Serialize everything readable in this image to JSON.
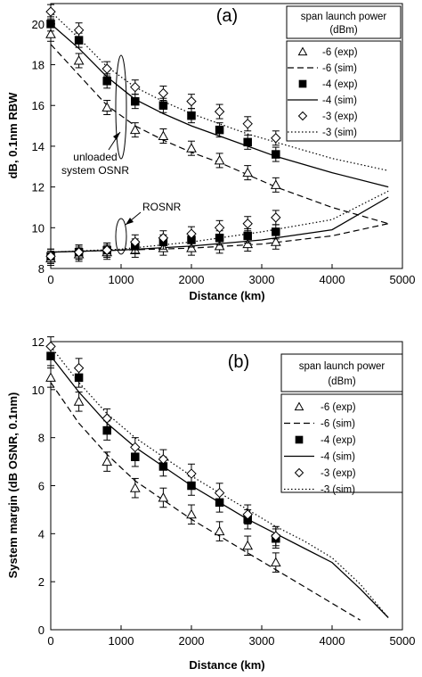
{
  "chart_data": [
    {
      "type": "line",
      "panel_label": "(a)",
      "xlabel": "Distance (km)",
      "ylabel": "dB, 0.1nm RBW",
      "xlim": [
        0,
        5000
      ],
      "ylim": [
        8,
        21
      ],
      "xticks": [
        "0",
        "1000",
        "2000",
        "3000",
        "4000",
        "5000"
      ],
      "yticks": [
        "8",
        "10",
        "12",
        "14",
        "16",
        "18",
        "20"
      ],
      "legend": {
        "title_line1": "span launch power",
        "title_line2": "(dBm)",
        "placement": "top-right"
      },
      "annotations": [
        {
          "text_lines": [
            "unloaded",
            "system OSNR"
          ]
        },
        {
          "text_lines": [
            "ROSNR"
          ]
        }
      ],
      "series": [
        {
          "name": "-6 (exp)",
          "kind": "exp",
          "marker": "triangle",
          "group": "osnr",
          "x": [
            0,
            400,
            800,
            1200,
            1600,
            2000,
            2400,
            2800,
            3200
          ],
          "y": [
            19.5,
            18.2,
            15.9,
            14.8,
            14.5,
            13.9,
            13.3,
            12.7,
            12.1
          ],
          "err": 0.35
        },
        {
          "name": "-6 (sim)",
          "kind": "sim",
          "dash": "dashed",
          "group": "osnr",
          "x": [
            0,
            400,
            800,
            1200,
            1600,
            2000,
            2400,
            2800,
            3200,
            4000,
            4800
          ],
          "y": [
            19.0,
            17.5,
            16.0,
            15.0,
            14.3,
            13.7,
            13.2,
            12.6,
            12.0,
            11.0,
            10.2
          ]
        },
        {
          "name": "-4 (exp)",
          "kind": "exp",
          "marker": "square",
          "group": "osnr",
          "x": [
            0,
            400,
            800,
            1200,
            1600,
            2000,
            2400,
            2800,
            3200
          ],
          "y": [
            20.0,
            19.2,
            17.2,
            16.2,
            16.0,
            15.5,
            14.8,
            14.2,
            13.6
          ],
          "err": 0.35
        },
        {
          "name": "-4 (sim)",
          "kind": "sim",
          "dash": "solid",
          "group": "osnr",
          "x": [
            0,
            400,
            800,
            1200,
            1600,
            2000,
            2400,
            2800,
            3200,
            4000,
            4800
          ],
          "y": [
            20.0,
            18.8,
            17.4,
            16.3,
            15.6,
            15.0,
            14.5,
            14.0,
            13.5,
            12.7,
            12.0
          ]
        },
        {
          "name": "-3 (exp)",
          "kind": "exp",
          "marker": "diamond",
          "group": "osnr",
          "x": [
            0,
            400,
            800,
            1200,
            1600,
            2000,
            2400,
            2800,
            3200
          ],
          "y": [
            20.6,
            19.7,
            17.8,
            16.9,
            16.6,
            16.2,
            15.7,
            15.1,
            14.4
          ],
          "err": 0.35
        },
        {
          "name": "-3 (sim)",
          "kind": "sim",
          "dash": "dotted",
          "group": "osnr",
          "x": [
            0,
            400,
            800,
            1200,
            1600,
            2000,
            2400,
            2800,
            3200,
            4000,
            4800
          ],
          "y": [
            20.6,
            19.3,
            17.9,
            16.9,
            16.2,
            15.6,
            15.1,
            14.6,
            14.2,
            13.4,
            12.8
          ]
        },
        {
          "name": "-6 (exp)",
          "kind": "exp",
          "marker": "triangle",
          "group": "rosnr",
          "x": [
            0,
            400,
            800,
            1200,
            1600,
            2000,
            2400,
            2800,
            3200
          ],
          "y": [
            8.5,
            8.7,
            8.8,
            8.9,
            9.0,
            9.0,
            9.1,
            9.2,
            9.3
          ],
          "err": 0.35
        },
        {
          "name": "-6 (sim)",
          "kind": "sim",
          "dash": "dashed",
          "group": "rosnr",
          "x": [
            0,
            1000,
            2000,
            3000,
            4000,
            4800
          ],
          "y": [
            8.8,
            8.9,
            9.0,
            9.2,
            9.6,
            10.2
          ]
        },
        {
          "name": "-4 (exp)",
          "kind": "exp",
          "marker": "square",
          "group": "rosnr",
          "x": [
            0,
            400,
            800,
            1200,
            1600,
            2000,
            2400,
            2800,
            3200
          ],
          "y": [
            8.6,
            8.8,
            8.9,
            9.1,
            9.3,
            9.4,
            9.5,
            9.6,
            9.8
          ],
          "err": 0.35
        },
        {
          "name": "-4 (sim)",
          "kind": "sim",
          "dash": "solid",
          "group": "rosnr",
          "x": [
            0,
            1000,
            2000,
            3000,
            4000,
            4800
          ],
          "y": [
            8.8,
            8.9,
            9.1,
            9.4,
            9.9,
            11.5
          ]
        },
        {
          "name": "-3 (exp)",
          "kind": "exp",
          "marker": "diamond",
          "group": "rosnr",
          "x": [
            0,
            400,
            800,
            1200,
            1600,
            2000,
            2400,
            2800,
            3200
          ],
          "y": [
            8.6,
            8.8,
            8.9,
            9.3,
            9.5,
            9.7,
            10.0,
            10.2,
            10.5
          ],
          "err": 0.35
        },
        {
          "name": "-3 (sim)",
          "kind": "sim",
          "dash": "dotted",
          "group": "rosnr",
          "x": [
            0,
            1000,
            2000,
            3000,
            4000,
            4800
          ],
          "y": [
            8.8,
            8.95,
            9.3,
            9.8,
            10.4,
            11.8
          ]
        }
      ]
    },
    {
      "type": "line",
      "panel_label": "(b)",
      "xlabel": "Distance (km)",
      "ylabel": "System margin (dB OSNR, 0.1nm)",
      "xlim": [
        0,
        5000
      ],
      "ylim": [
        0,
        12
      ],
      "xticks": [
        "0",
        "1000",
        "2000",
        "3000",
        "4000",
        "5000"
      ],
      "yticks": [
        "0",
        "2",
        "4",
        "6",
        "8",
        "10",
        "12"
      ],
      "legend": {
        "title_line1": "span launch power",
        "title_line2": "(dBm)",
        "placement": "top-right"
      },
      "series": [
        {
          "name": "-6 (exp)",
          "kind": "exp",
          "marker": "triangle",
          "x": [
            0,
            400,
            800,
            1200,
            1600,
            2000,
            2400,
            2800,
            3200
          ],
          "y": [
            10.5,
            9.5,
            7.0,
            5.9,
            5.5,
            4.8,
            4.1,
            3.5,
            2.8
          ],
          "err": 0.4
        },
        {
          "name": "-6 (sim)",
          "kind": "sim",
          "dash": "dashed",
          "x": [
            0,
            400,
            800,
            1200,
            1600,
            2000,
            2400,
            2800,
            3200,
            3600,
            4000,
            4400
          ],
          "y": [
            10.3,
            8.6,
            7.3,
            6.2,
            5.4,
            4.6,
            3.9,
            3.2,
            2.5,
            1.8,
            1.1,
            0.4
          ]
        },
        {
          "name": "-4 (exp)",
          "kind": "exp",
          "marker": "square",
          "x": [
            0,
            400,
            800,
            1200,
            1600,
            2000,
            2400,
            2800,
            3200
          ],
          "y": [
            11.4,
            10.5,
            8.3,
            7.2,
            6.8,
            6.0,
            5.3,
            4.6,
            3.8
          ],
          "err": 0.4
        },
        {
          "name": "-4 (sim)",
          "kind": "sim",
          "dash": "solid",
          "x": [
            0,
            400,
            800,
            1200,
            1600,
            2000,
            2400,
            2800,
            3200,
            3600,
            4000,
            4400,
            4800
          ],
          "y": [
            11.4,
            9.9,
            8.6,
            7.6,
            6.8,
            6.0,
            5.3,
            4.6,
            4.0,
            3.4,
            2.8,
            1.7,
            0.5
          ]
        },
        {
          "name": "-3 (exp)",
          "kind": "exp",
          "marker": "diamond",
          "x": [
            0,
            400,
            800,
            1200,
            1600,
            2000,
            2400,
            2800,
            3200
          ],
          "y": [
            11.8,
            10.9,
            8.8,
            7.6,
            7.1,
            6.5,
            5.7,
            4.8,
            3.9
          ],
          "err": 0.4
        },
        {
          "name": "-3 (sim)",
          "kind": "sim",
          "dash": "dotted",
          "x": [
            0,
            400,
            800,
            1200,
            1600,
            2000,
            2400,
            2800,
            3200,
            3600,
            4000,
            4400,
            4800
          ],
          "y": [
            11.8,
            10.3,
            9.0,
            8.0,
            7.2,
            6.4,
            5.7,
            5.0,
            4.3,
            3.7,
            3.0,
            1.9,
            0.5
          ]
        }
      ]
    }
  ]
}
